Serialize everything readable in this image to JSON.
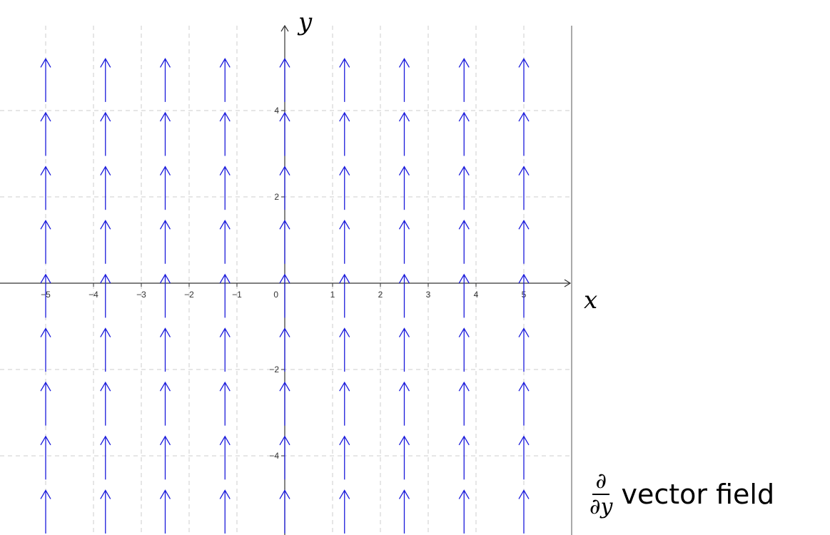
{
  "chart_data": {
    "type": "vector-field",
    "field": {
      "dx": 0,
      "dy": 1
    },
    "xlabel": "x",
    "ylabel": "y",
    "xlim": [
      -6,
      6
    ],
    "ylim": [
      -5.6,
      6.1
    ],
    "x_ticks": [
      -5,
      -4,
      -3,
      -2,
      -1,
      0,
      1,
      2,
      3,
      4,
      5
    ],
    "y_ticks": [
      -4,
      -2,
      2,
      4
    ],
    "x_tick_labels": [
      "−5",
      "−4",
      "−3",
      "−2",
      "−1",
      "0",
      "1",
      "2",
      "3",
      "4",
      "5"
    ],
    "y_tick_labels": [
      "−4",
      "−2",
      "2",
      "4"
    ],
    "arrow_x": [
      -5,
      -3.75,
      -2.5,
      -1.25,
      0,
      1.25,
      2.5,
      3.75,
      5
    ],
    "arrow_y": [
      4.7,
      3.45,
      2.2,
      0.95,
      -0.3,
      -1.55,
      -2.8,
      -4.05,
      -5.3
    ],
    "arrow_length": 1.0,
    "grid": true,
    "arrow_color": "#1a1adb",
    "grid_color": "#cccccc"
  },
  "caption": {
    "numerator": "∂",
    "denominator": "∂y",
    "text": "vector field"
  }
}
